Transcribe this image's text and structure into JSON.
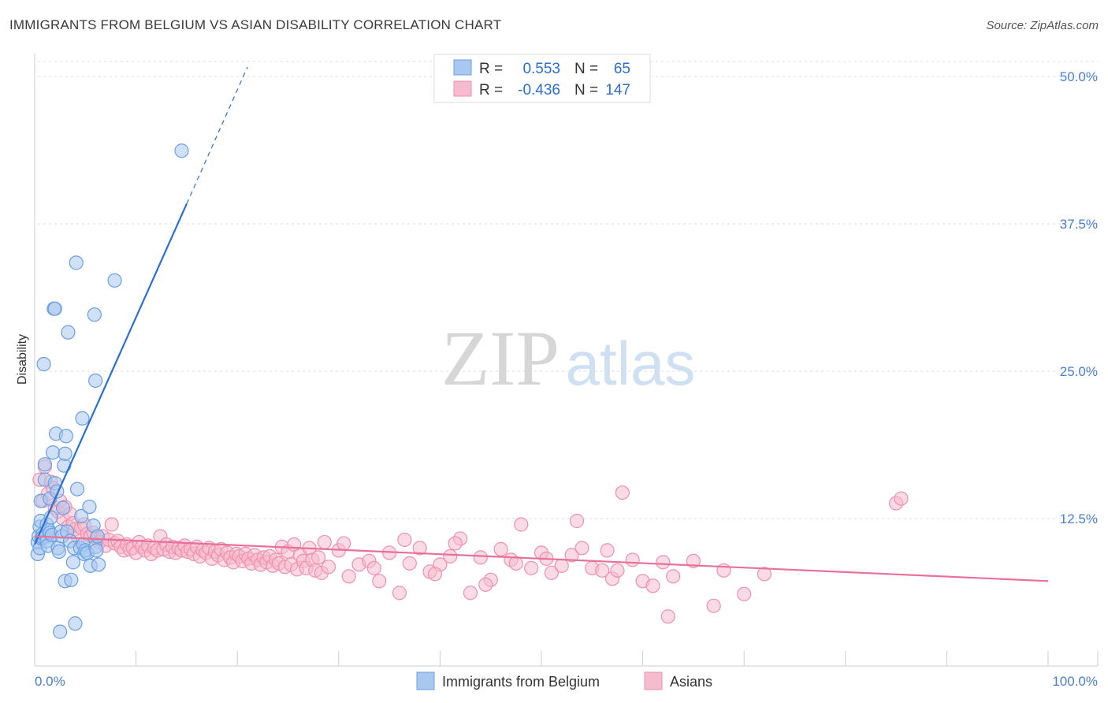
{
  "title": "IMMIGRANTS FROM BELGIUM VS ASIAN DISABILITY CORRELATION CHART",
  "source": "Source: ZipAtlas.com",
  "watermark": {
    "zip": "ZIP",
    "atlas": "atlas"
  },
  "colors": {
    "blue_fill": "#a9c8f0",
    "blue_stroke": "#6a9fe0",
    "blue_line": "#2b6fcf",
    "pink_fill": "#f6bccd",
    "pink_stroke": "#ef90ad",
    "pink_line": "#e8709a",
    "tick_text": "#4a7fcf"
  },
  "legend": {
    "rows": [
      {
        "r_label": "R =",
        "r_value": "0.553",
        "n_label": "N =",
        "n_value": "65",
        "color": "blue"
      },
      {
        "r_label": "R =",
        "r_value": "-0.436",
        "n_label": "N =",
        "n_value": "147",
        "color": "pink"
      }
    ]
  },
  "chart_data": {
    "type": "scatter",
    "title": "IMMIGRANTS FROM BELGIUM VS ASIAN DISABILITY CORRELATION CHART",
    "xlabel": "",
    "ylabel": "Disability",
    "xlim": [
      0,
      100
    ],
    "ylim": [
      0,
      50
    ],
    "x_tick_labels": [
      "0.0%",
      "100.0%"
    ],
    "y_ticks": [
      12.5,
      25.0,
      37.5,
      50.0
    ],
    "y_tick_labels": [
      "12.5%",
      "25.0%",
      "37.5%",
      "50.0%"
    ],
    "grid": true,
    "series": [
      {
        "name": "Immigrants from Belgium",
        "color": "blue",
        "R": 0.553,
        "N": 65,
        "trendline": {
          "x": [
            0,
            15
          ],
          "y": [
            10.3,
            39.2
          ],
          "dashed_extension": {
            "x": [
              15,
              21
            ],
            "y": [
              39.2,
              50.8
            ]
          }
        },
        "points": [
          [
            0.3,
            9.5
          ],
          [
            0.3,
            10.5
          ],
          [
            0.4,
            11.0
          ],
          [
            0.5,
            11.8
          ],
          [
            0.5,
            10.0
          ],
          [
            0.6,
            12.3
          ],
          [
            0.6,
            14.0
          ],
          [
            0.7,
            10.8
          ],
          [
            0.8,
            11.2
          ],
          [
            0.8,
            10.9
          ],
          [
            0.9,
            25.6
          ],
          [
            1.0,
            17.1
          ],
          [
            1.0,
            15.8
          ],
          [
            1.1,
            11.0
          ],
          [
            1.2,
            12.0
          ],
          [
            1.2,
            10.6
          ],
          [
            1.3,
            10.2
          ],
          [
            1.4,
            11.5
          ],
          [
            1.5,
            14.2
          ],
          [
            1.5,
            11.3
          ],
          [
            1.6,
            12.6
          ],
          [
            1.7,
            11.1
          ],
          [
            1.8,
            18.1
          ],
          [
            1.9,
            30.3
          ],
          [
            2.0,
            30.3
          ],
          [
            2.0,
            15.5
          ],
          [
            2.1,
            19.7
          ],
          [
            2.2,
            14.8
          ],
          [
            2.3,
            10.0
          ],
          [
            2.4,
            9.7
          ],
          [
            2.5,
            2.9
          ],
          [
            2.6,
            11.4
          ],
          [
            2.7,
            11.0
          ],
          [
            2.8,
            13.4
          ],
          [
            2.9,
            17.0
          ],
          [
            3.0,
            18.0
          ],
          [
            3.0,
            7.2
          ],
          [
            3.1,
            19.5
          ],
          [
            3.2,
            11.4
          ],
          [
            3.3,
            28.3
          ],
          [
            3.5,
            10.6
          ],
          [
            3.6,
            7.3
          ],
          [
            3.8,
            8.8
          ],
          [
            3.9,
            10.0
          ],
          [
            4.0,
            3.6
          ],
          [
            4.1,
            34.2
          ],
          [
            4.2,
            15.0
          ],
          [
            4.5,
            10.0
          ],
          [
            4.6,
            12.7
          ],
          [
            4.7,
            21.0
          ],
          [
            4.8,
            10.3
          ],
          [
            4.9,
            9.5
          ],
          [
            5.0,
            9.8
          ],
          [
            5.2,
            9.6
          ],
          [
            5.5,
            8.5
          ],
          [
            5.8,
            11.9
          ],
          [
            6.0,
            10.1
          ],
          [
            6.1,
            9.8
          ],
          [
            6.2,
            11.0
          ],
          [
            6.3,
            8.6
          ],
          [
            5.4,
            13.5
          ],
          [
            5.9,
            29.8
          ],
          [
            6.0,
            24.2
          ],
          [
            7.9,
            32.7
          ],
          [
            14.5,
            43.7
          ]
        ]
      },
      {
        "name": "Asians",
        "color": "pink",
        "R": -0.436,
        "N": 147,
        "trendline": {
          "x": [
            0,
            100
          ],
          "y": [
            11.0,
            7.2
          ]
        },
        "points": [
          [
            0.5,
            15.8
          ],
          [
            0.8,
            14.0
          ],
          [
            1.0,
            16.9
          ],
          [
            1.3,
            14.6
          ],
          [
            1.6,
            15.6
          ],
          [
            1.8,
            15.1
          ],
          [
            2.0,
            13.4
          ],
          [
            2.3,
            13.1
          ],
          [
            2.5,
            14.0
          ],
          [
            2.8,
            12.5
          ],
          [
            3.0,
            13.5
          ],
          [
            3.3,
            11.8
          ],
          [
            3.5,
            12.9
          ],
          [
            3.8,
            12.1
          ],
          [
            4.0,
            11.6
          ],
          [
            4.3,
            10.9
          ],
          [
            4.6,
            11.7
          ],
          [
            4.9,
            12.0
          ],
          [
            5.2,
            11.2
          ],
          [
            5.5,
            11.0
          ],
          [
            5.8,
            11.3
          ],
          [
            6.1,
            10.8
          ],
          [
            6.4,
            10.5
          ],
          [
            6.7,
            11.0
          ],
          [
            7.0,
            10.2
          ],
          [
            7.3,
            10.7
          ],
          [
            7.6,
            12.0
          ],
          [
            7.9,
            10.4
          ],
          [
            8.2,
            10.6
          ],
          [
            8.5,
            10.1
          ],
          [
            8.8,
            9.8
          ],
          [
            9.1,
            10.3
          ],
          [
            9.4,
            9.9
          ],
          [
            9.7,
            10.0
          ],
          [
            10.0,
            9.6
          ],
          [
            10.3,
            10.5
          ],
          [
            10.6,
            10.1
          ],
          [
            10.9,
            9.8
          ],
          [
            11.2,
            10.2
          ],
          [
            11.5,
            9.5
          ],
          [
            11.8,
            10.0
          ],
          [
            12.1,
            9.8
          ],
          [
            12.4,
            11.0
          ],
          [
            12.7,
            9.9
          ],
          [
            13.0,
            10.3
          ],
          [
            13.3,
            9.7
          ],
          [
            13.6,
            10.1
          ],
          [
            13.9,
            9.6
          ],
          [
            14.2,
            10.0
          ],
          [
            14.5,
            9.8
          ],
          [
            14.8,
            10.2
          ],
          [
            15.1,
            9.7
          ],
          [
            15.4,
            9.9
          ],
          [
            15.7,
            9.5
          ],
          [
            16.0,
            10.1
          ],
          [
            16.3,
            9.3
          ],
          [
            16.6,
            9.8
          ],
          [
            16.9,
            9.6
          ],
          [
            17.2,
            10.0
          ],
          [
            17.5,
            9.1
          ],
          [
            17.8,
            9.7
          ],
          [
            18.1,
            9.4
          ],
          [
            18.4,
            9.9
          ],
          [
            18.7,
            9.0
          ],
          [
            19.0,
            9.6
          ],
          [
            19.3,
            9.2
          ],
          [
            19.6,
            8.8
          ],
          [
            19.9,
            9.5
          ],
          [
            20.2,
            9.3
          ],
          [
            20.5,
            8.9
          ],
          [
            20.8,
            9.5
          ],
          [
            21.1,
            9.1
          ],
          [
            21.4,
            8.7
          ],
          [
            21.7,
            9.4
          ],
          [
            22.0,
            9.0
          ],
          [
            22.3,
            8.6
          ],
          [
            22.6,
            9.2
          ],
          [
            22.9,
            8.8
          ],
          [
            23.2,
            9.3
          ],
          [
            23.5,
            8.5
          ],
          [
            23.8,
            9.0
          ],
          [
            24.1,
            8.7
          ],
          [
            24.4,
            10.1
          ],
          [
            24.7,
            8.4
          ],
          [
            25.0,
            9.7
          ],
          [
            25.3,
            8.6
          ],
          [
            25.6,
            10.3
          ],
          [
            25.9,
            8.2
          ],
          [
            26.2,
            9.4
          ],
          [
            26.5,
            8.9
          ],
          [
            26.8,
            8.3
          ],
          [
            27.1,
            10.0
          ],
          [
            27.4,
            9.0
          ],
          [
            27.7,
            8.1
          ],
          [
            28.0,
            9.2
          ],
          [
            28.3,
            7.9
          ],
          [
            28.6,
            10.5
          ],
          [
            29.0,
            8.4
          ],
          [
            30.0,
            9.8
          ],
          [
            31.0,
            7.6
          ],
          [
            32.0,
            8.6
          ],
          [
            33.0,
            8.9
          ],
          [
            34.0,
            7.2
          ],
          [
            35.0,
            9.6
          ],
          [
            36.0,
            6.2
          ],
          [
            37.0,
            8.7
          ],
          [
            38.0,
            10.0
          ],
          [
            39.0,
            8.0
          ],
          [
            40.0,
            8.6
          ],
          [
            41.0,
            9.3
          ],
          [
            42.0,
            10.8
          ],
          [
            43.0,
            6.2
          ],
          [
            44.0,
            9.2
          ],
          [
            45.0,
            7.3
          ],
          [
            46.0,
            9.9
          ],
          [
            47.0,
            9.0
          ],
          [
            48.0,
            12.0
          ],
          [
            49.0,
            8.3
          ],
          [
            50.0,
            9.6
          ],
          [
            51.0,
            7.9
          ],
          [
            52.0,
            8.5
          ],
          [
            53.0,
            9.4
          ],
          [
            54.0,
            10.0
          ],
          [
            55.0,
            8.3
          ],
          [
            56.0,
            8.1
          ],
          [
            57.0,
            7.4
          ],
          [
            58.0,
            14.7
          ],
          [
            59.0,
            9.0
          ],
          [
            60.0,
            7.2
          ],
          [
            61.0,
            6.8
          ],
          [
            62.0,
            8.8
          ],
          [
            63.0,
            7.6
          ],
          [
            65.0,
            8.9
          ],
          [
            67.0,
            5.1
          ],
          [
            68.0,
            8.1
          ],
          [
            70.0,
            6.1
          ],
          [
            72.0,
            7.8
          ],
          [
            85.0,
            13.8
          ],
          [
            85.5,
            14.2
          ],
          [
            30.5,
            10.4
          ],
          [
            33.5,
            8.3
          ],
          [
            36.5,
            10.7
          ],
          [
            39.5,
            7.8
          ],
          [
            41.5,
            10.4
          ],
          [
            44.5,
            6.9
          ],
          [
            47.5,
            8.7
          ],
          [
            50.5,
            9.1
          ],
          [
            53.5,
            12.3
          ],
          [
            56.5,
            9.8
          ],
          [
            57.5,
            8.1
          ],
          [
            62.5,
            4.2
          ]
        ]
      }
    ],
    "legend_position": "top-center"
  },
  "bottom_legend": [
    {
      "label": "Immigrants from Belgium",
      "color": "blue"
    },
    {
      "label": "Asians",
      "color": "pink"
    }
  ]
}
